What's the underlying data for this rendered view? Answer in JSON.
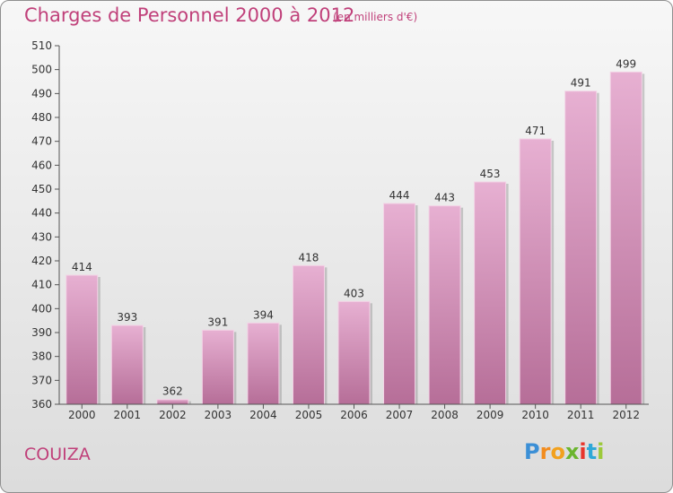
{
  "title": "Charges de Personnel 2000 à 2012",
  "subtitle": "(en milliers d'€)",
  "commune": "COUIZA",
  "logo": {
    "text": "Proxiti",
    "colors": [
      "#3b8fd6",
      "#f28c1e",
      "#f2a11e",
      "#6bb52e",
      "#e8352b",
      "#2fa8d8",
      "#9cc93a"
    ]
  },
  "colors": {
    "bar": "#d98fbc",
    "bar_light": "#e7b0d2",
    "bar_dark": "#b66e98",
    "text_accent": "#c0407a"
  },
  "chart_data": {
    "type": "bar",
    "categories": [
      "2000",
      "2001",
      "2002",
      "2003",
      "2004",
      "2005",
      "2006",
      "2007",
      "2008",
      "2009",
      "2010",
      "2011",
      "2012"
    ],
    "values": [
      414,
      393,
      362,
      391,
      394,
      418,
      403,
      444,
      443,
      453,
      471,
      491,
      499
    ],
    "ylim": [
      360,
      510
    ],
    "yticks": [
      360,
      370,
      380,
      390,
      400,
      410,
      420,
      430,
      440,
      450,
      460,
      470,
      480,
      490,
      500,
      510
    ],
    "grid": false,
    "data_labels": true
  }
}
